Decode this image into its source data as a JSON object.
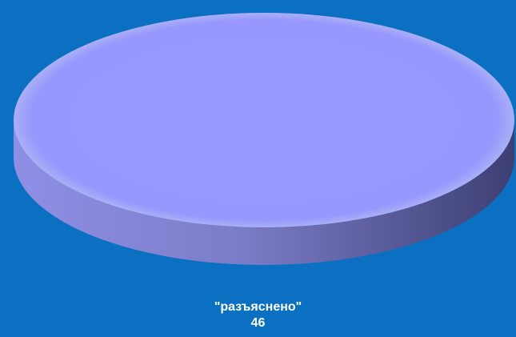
{
  "chart_data": {
    "type": "pie",
    "title": "",
    "slices": [
      {
        "label": "\"разъяснено\"",
        "value": 46
      }
    ],
    "legend": "none",
    "colors": {
      "background": "#0b6fc2",
      "slice_top": "#9999ff",
      "slice_side_light": "#8f8fe6",
      "slice_side_dark": "#3d3f73",
      "label_text": "#ffffff"
    }
  }
}
